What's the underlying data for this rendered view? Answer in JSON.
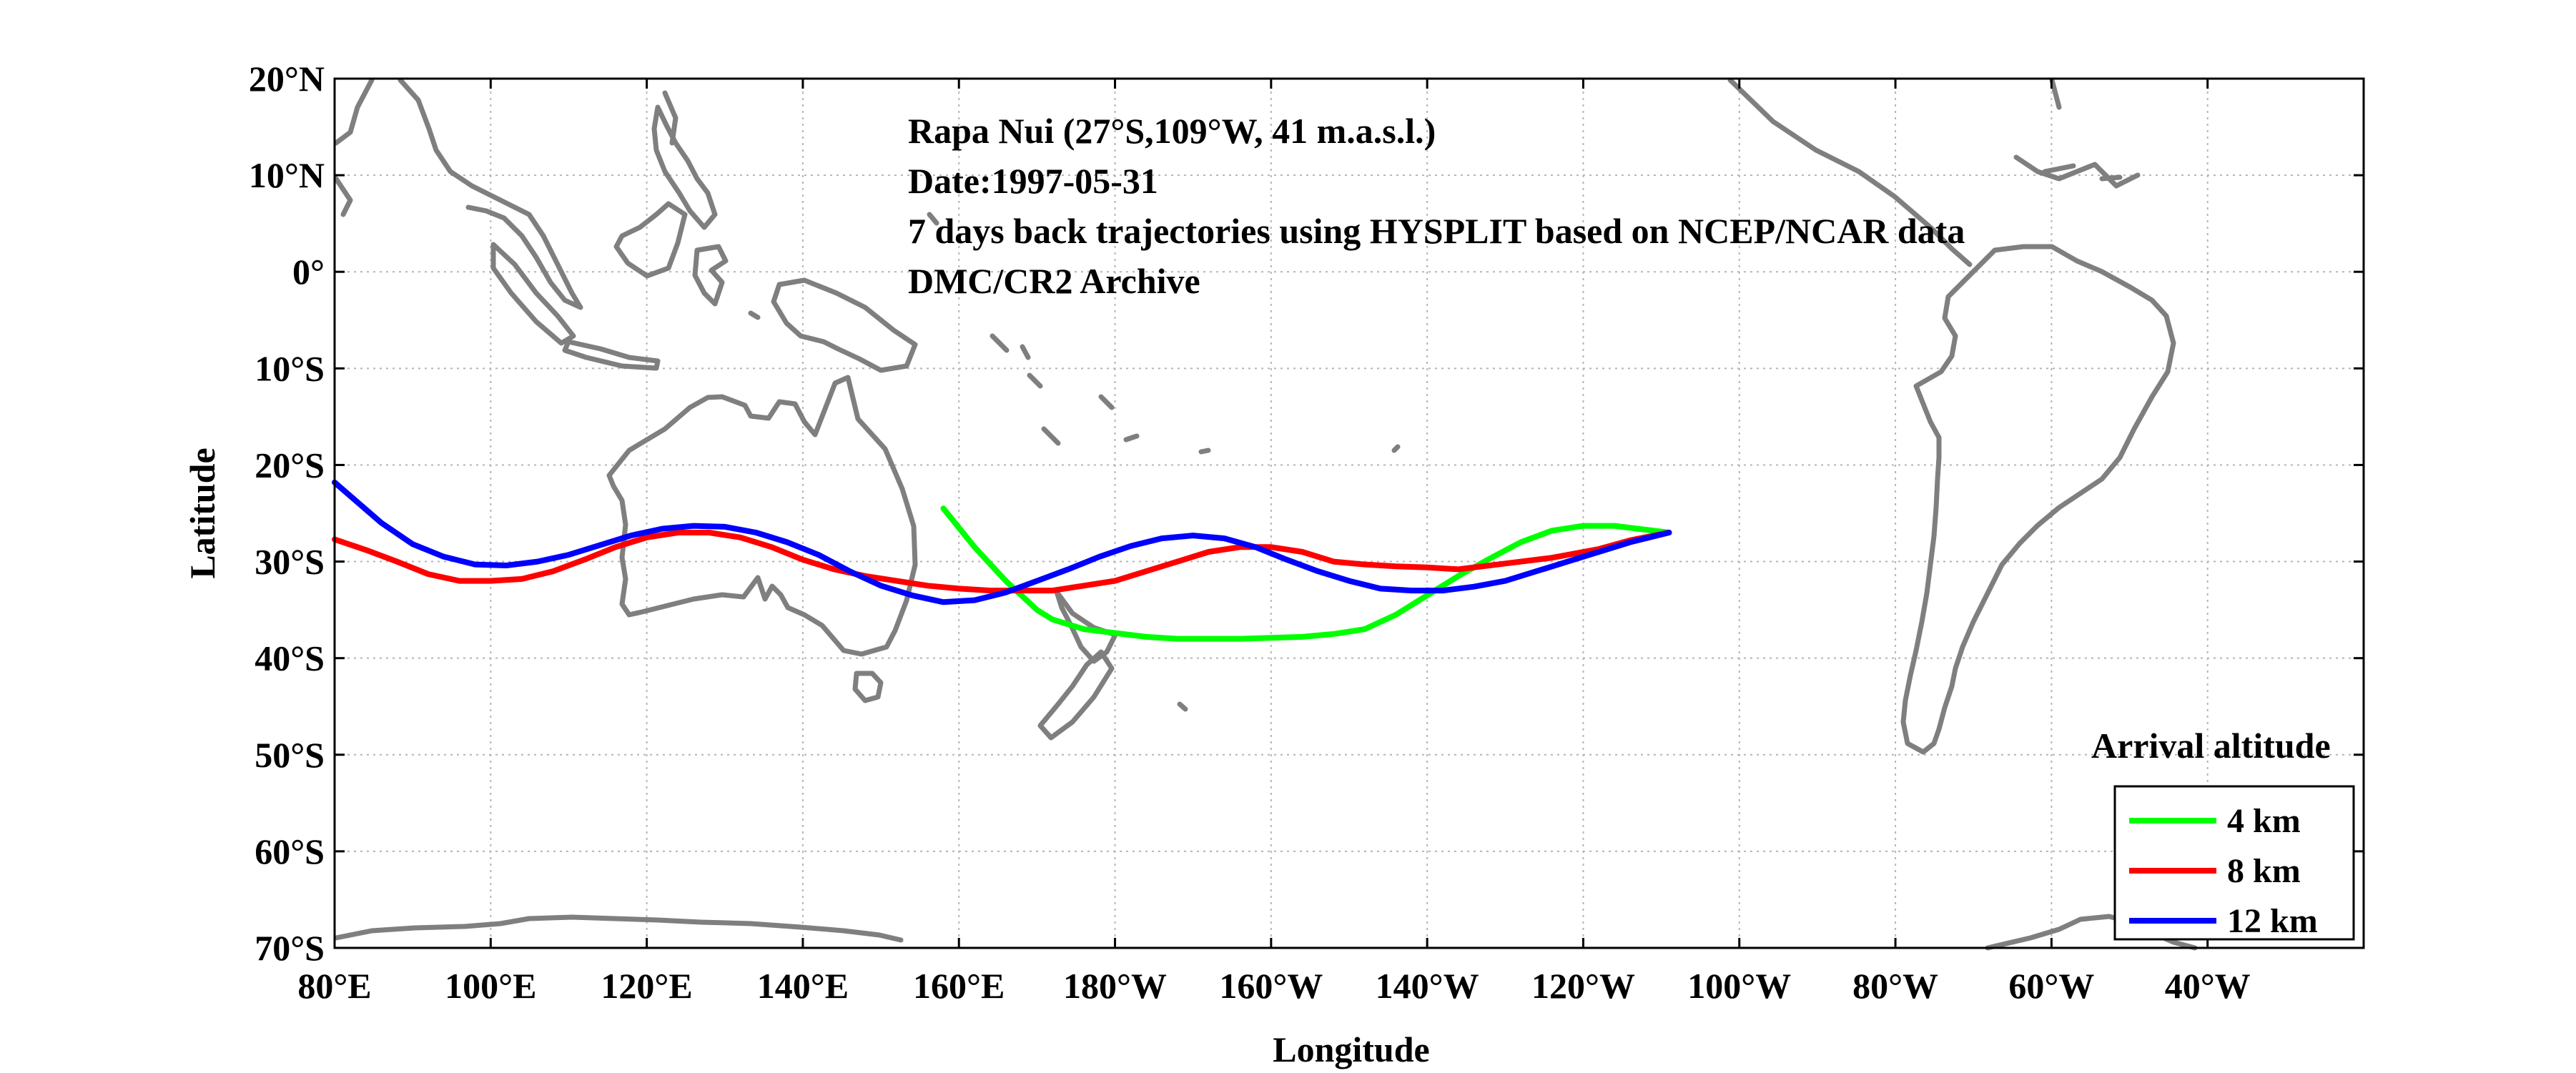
{
  "chart_data": {
    "type": "line",
    "annotations": [
      "Rapa Nui (27°S,109°W, 41 m.a.s.l.)",
      "Date:1997-05-31",
      "7 days back trajectories using HYSPLIT based on NCEP/NCAR data",
      "DMC/CR2 Archive"
    ],
    "xlabel": "Longitude",
    "ylabel": "Latitude",
    "xlim": [
      80,
      340
    ],
    "ylim": [
      -70,
      20
    ],
    "grid": true,
    "x_ticks": [
      {
        "value": 80,
        "label": "80°E"
      },
      {
        "value": 100,
        "label": "100°E"
      },
      {
        "value": 120,
        "label": "120°E"
      },
      {
        "value": 140,
        "label": "140°E"
      },
      {
        "value": 160,
        "label": "160°E"
      },
      {
        "value": 180,
        "label": "180°W"
      },
      {
        "value": 200,
        "label": "160°W"
      },
      {
        "value": 220,
        "label": "140°W"
      },
      {
        "value": 240,
        "label": "120°W"
      },
      {
        "value": 260,
        "label": "100°W"
      },
      {
        "value": 280,
        "label": "80°W"
      },
      {
        "value": 300,
        "label": "60°W"
      },
      {
        "value": 320,
        "label": "40°W"
      }
    ],
    "y_ticks": [
      {
        "value": 20,
        "label": "20°N"
      },
      {
        "value": 10,
        "label": "10°N"
      },
      {
        "value": 0,
        "label": "0°"
      },
      {
        "value": -10,
        "label": "10°S"
      },
      {
        "value": -20,
        "label": "20°S"
      },
      {
        "value": -30,
        "label": "30°S"
      },
      {
        "value": -40,
        "label": "40°S"
      },
      {
        "value": -50,
        "label": "50°S"
      },
      {
        "value": -60,
        "label": "60°S"
      },
      {
        "value": -70,
        "label": "70°S"
      }
    ],
    "legend": {
      "title": "Arrival altitude",
      "position": "bottom-right"
    },
    "series": [
      {
        "name": "4 km",
        "color": "#00ff00",
        "x": [
          251,
          248,
          244,
          240,
          236,
          232,
          228,
          224,
          220,
          216,
          212,
          208,
          204,
          200,
          196,
          192,
          188,
          184,
          180,
          176,
          172,
          170,
          166,
          162,
          158
        ],
        "y": [
          -27.0,
          -26.7,
          -26.3,
          -26.3,
          -26.8,
          -28.0,
          -29.7,
          -31.5,
          -33.5,
          -35.5,
          -37.0,
          -37.5,
          -37.8,
          -37.9,
          -38.0,
          -38.0,
          -38.0,
          -37.8,
          -37.4,
          -37.0,
          -36.0,
          -35.0,
          -32.0,
          -28.5,
          -24.5
        ]
      },
      {
        "name": "8 km",
        "color": "#ff0000",
        "x": [
          251,
          246,
          242,
          236,
          230,
          224,
          220,
          216,
          212,
          208,
          204,
          200,
          196,
          192,
          188,
          184,
          180,
          176,
          172,
          168,
          164,
          160,
          156,
          152,
          148,
          144,
          140,
          136,
          132,
          128,
          124,
          120,
          116,
          112,
          108,
          104,
          100,
          96,
          92,
          88,
          84,
          80
        ],
        "y": [
          -27.0,
          -27.8,
          -28.7,
          -29.6,
          -30.2,
          -30.8,
          -30.6,
          -30.5,
          -30.3,
          -30.0,
          -29.0,
          -28.5,
          -28.5,
          -29.0,
          -30.0,
          -31.0,
          -32.0,
          -32.5,
          -33.0,
          -33.0,
          -33.0,
          -32.8,
          -32.5,
          -32.0,
          -31.5,
          -30.8,
          -29.8,
          -28.5,
          -27.5,
          -27.0,
          -27.0,
          -27.5,
          -28.5,
          -29.8,
          -31.0,
          -31.8,
          -32.0,
          -32.0,
          -31.3,
          -30.0,
          -28.8,
          -27.7
        ]
      },
      {
        "name": "12 km",
        "color": "#0000ff",
        "x": [
          251,
          246,
          242,
          238,
          234,
          230,
          226,
          222,
          218,
          214,
          210,
          206,
          202,
          198,
          194,
          190,
          186,
          182,
          178,
          174,
          170,
          166,
          162,
          158,
          154,
          150,
          146,
          142,
          138,
          134,
          130,
          126,
          122,
          118,
          114,
          110,
          106,
          102,
          98,
          94,
          90,
          86,
          82,
          80
        ],
        "y": [
          -27.0,
          -28.0,
          -29.0,
          -30.0,
          -31.0,
          -32.0,
          -32.6,
          -33.0,
          -33.0,
          -32.8,
          -32.0,
          -31.0,
          -29.8,
          -28.5,
          -27.6,
          -27.3,
          -27.6,
          -28.4,
          -29.5,
          -30.8,
          -32.0,
          -33.2,
          -34.0,
          -34.2,
          -33.5,
          -32.5,
          -31.0,
          -29.3,
          -28.0,
          -27.0,
          -26.4,
          -26.3,
          -26.6,
          -27.3,
          -28.3,
          -29.3,
          -30.0,
          -30.4,
          -30.3,
          -29.5,
          -28.2,
          -26.0,
          -23.2,
          -21.8
        ]
      }
    ]
  }
}
